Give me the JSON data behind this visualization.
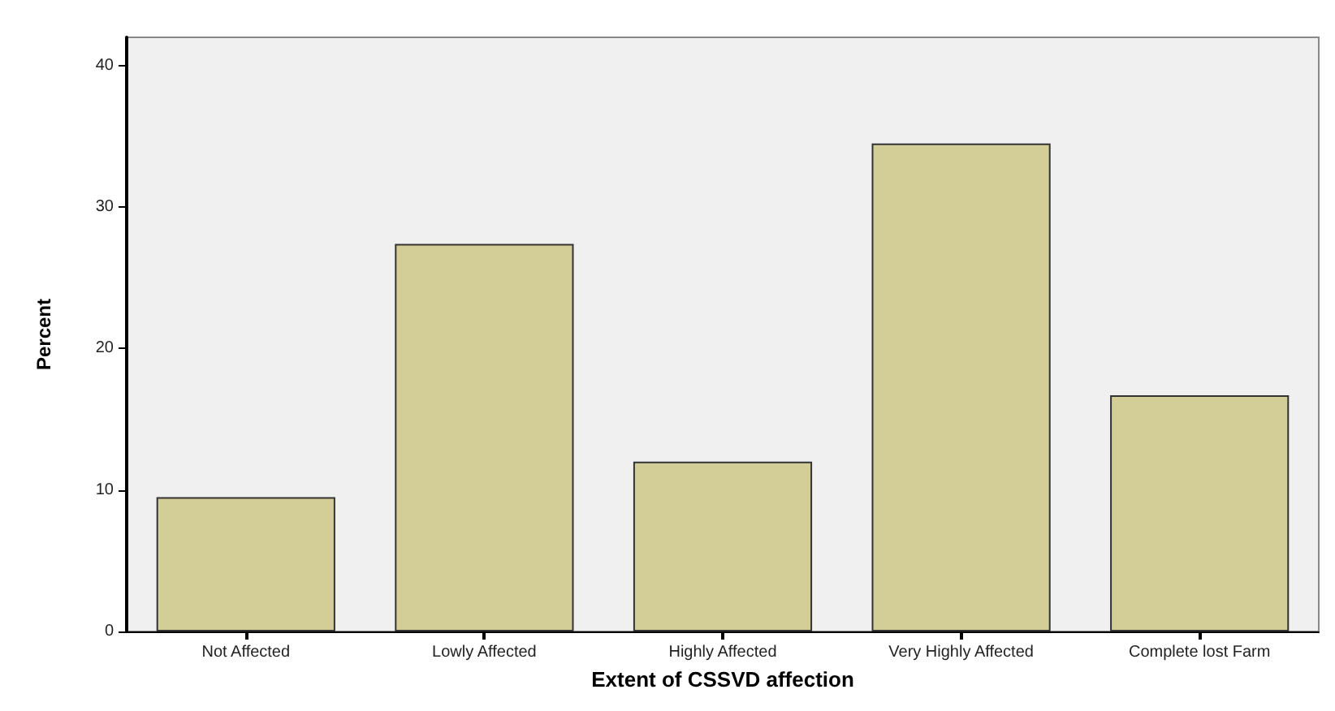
{
  "chart_data": {
    "type": "bar",
    "xlabel": "Extent of CSSVD affection",
    "ylabel": "Percent",
    "categories": [
      "Not Affected",
      "Lowly Affected",
      "Highly Affected",
      "Very Highly Affected",
      "Complete lost Farm"
    ],
    "values": [
      9.5,
      27.4,
      12.0,
      34.5,
      16.7
    ],
    "color": "#d3cd98",
    "ylim": [
      0,
      42
    ],
    "yticks": [
      0,
      10,
      20,
      30,
      40
    ],
    "grid": false
  }
}
